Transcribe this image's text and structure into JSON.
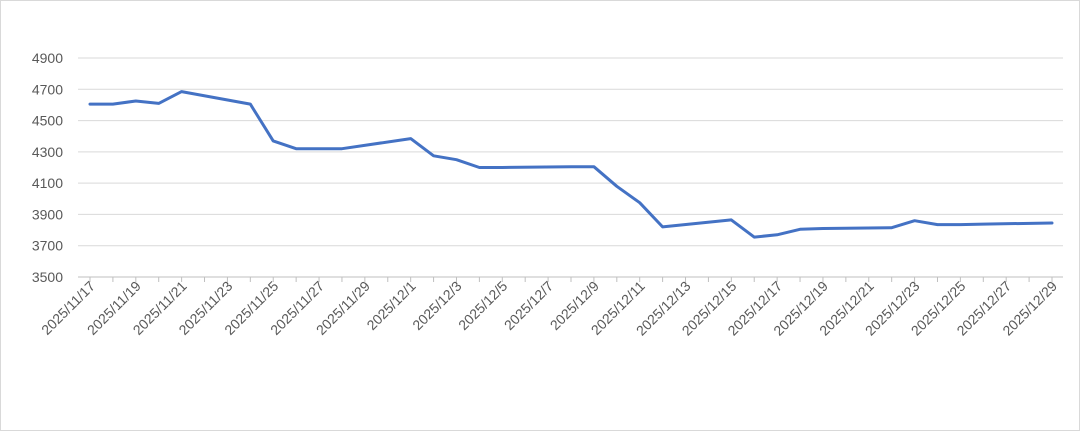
{
  "chart_data": {
    "type": "line",
    "title": "",
    "xlabel": "",
    "ylabel": "",
    "ylim": [
      3500,
      4900
    ],
    "y_ticks": [
      "3500",
      "3700",
      "3900",
      "4100",
      "4300",
      "4500",
      "4700",
      "4900"
    ],
    "x_tick_labels": [
      "2025/11/17",
      "2025/11/19",
      "2025/11/21",
      "2025/11/23",
      "2025/11/25",
      "2025/11/27",
      "2025/11/29",
      "2025/12/1",
      "2025/12/3",
      "2025/12/5",
      "2025/12/7",
      "2025/12/9",
      "2025/12/11",
      "2025/12/13",
      "2025/12/15",
      "2025/12/17",
      "2025/12/19",
      "2025/12/21",
      "2025/12/23",
      "2025/12/25",
      "2025/12/27",
      "2025/12/29"
    ],
    "x_start": "2025/11/17",
    "x_end": "2025/12/29",
    "grid": true,
    "legend": "none",
    "line_color": "#4472c4",
    "series": [
      {
        "dates": [
          "2025/11/17",
          "2025/11/18",
          "2025/11/19",
          "2025/11/20",
          "2025/11/21",
          "2025/11/24",
          "2025/11/25",
          "2025/11/26",
          "2025/11/27",
          "2025/11/28",
          "2025/12/1",
          "2025/12/2",
          "2025/12/3",
          "2025/12/4",
          "2025/12/5",
          "2025/12/8",
          "2025/12/9",
          "2025/12/10",
          "2025/12/11",
          "2025/12/12",
          "2025/12/15",
          "2025/12/16",
          "2025/12/17",
          "2025/12/18",
          "2025/12/19",
          "2025/12/22",
          "2025/12/23",
          "2025/12/24",
          "2025/12/25",
          "2025/12/26",
          "2025/12/29"
        ],
        "values": [
          4605,
          4605,
          4625,
          4610,
          4685,
          4605,
          4370,
          4320,
          4320,
          4320,
          4385,
          4275,
          4250,
          4200,
          4200,
          4205,
          4205,
          4080,
          3975,
          3820,
          3865,
          3755,
          3770,
          3805,
          3810,
          3815,
          3860,
          3835,
          3835,
          3838,
          3845
        ]
      }
    ]
  }
}
